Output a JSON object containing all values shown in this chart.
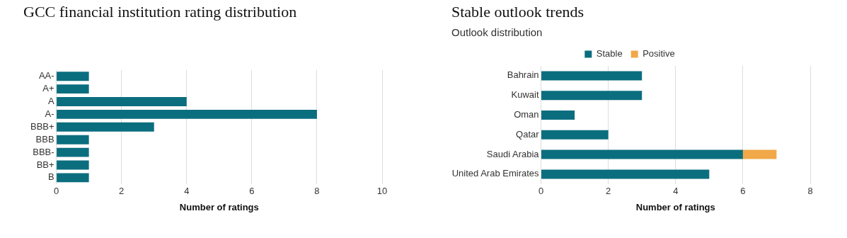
{
  "chart_data": [
    {
      "type": "bar",
      "title": "GCC financial institution rating distribution",
      "orientation": "horizontal",
      "categories": [
        "AA-",
        "A+",
        "A",
        "A-",
        "BBB+",
        "BBB",
        "BBB-",
        "BB+",
        "B"
      ],
      "values": [
        1,
        1,
        4,
        8,
        3,
        1,
        1,
        1,
        1
      ],
      "color": "#0b6e7f",
      "xlim": [
        0,
        10
      ],
      "xticks": [
        0,
        2,
        4,
        6,
        8,
        10
      ],
      "xlabel": "Number of ratings",
      "grid": "x",
      "legend": false
    },
    {
      "type": "bar",
      "title": "Stable outlook trends",
      "subtitle": "Outlook distribution",
      "orientation": "horizontal",
      "stacked": true,
      "categories": [
        "Bahrain",
        "Kuwait",
        "Oman",
        "Qatar",
        "Saudi Arabia",
        "United Arab Emirates"
      ],
      "series": [
        {
          "name": "Stable",
          "color": "#0b6e7f",
          "values": [
            3,
            3,
            1,
            2,
            6,
            5
          ]
        },
        {
          "name": "Positive",
          "color": "#f0a848",
          "values": [
            0,
            0,
            0,
            0,
            1,
            0
          ]
        }
      ],
      "xlim": [
        0,
        8
      ],
      "xticks": [
        0,
        2,
        4,
        6,
        8
      ],
      "xlabel": "Number of ratings",
      "grid": "x",
      "legend": "top"
    }
  ]
}
